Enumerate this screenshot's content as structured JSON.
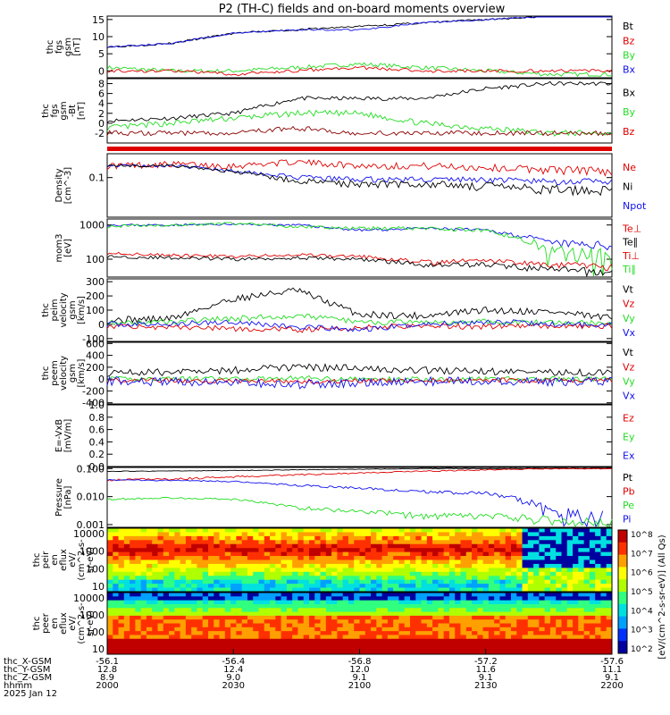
{
  "title": "P2 (TH-C) fields and on-board moments overview",
  "colors": {
    "black": "#000000",
    "red": "#e00000",
    "green": "#22dd22",
    "blue": "#1010ee",
    "darkred": "#8b0000"
  },
  "panels": [
    {
      "id": "fgs_gsm",
      "ylabel": [
        "thc",
        "fgs",
        "gsm",
        "[nT]"
      ],
      "yticks": [
        "15",
        "10",
        "5",
        "0"
      ],
      "yrange": [
        -2,
        16
      ],
      "legend": [
        {
          "text": "Bt",
          "color": "black"
        },
        {
          "text": "Bz",
          "color": "red"
        },
        {
          "text": "By",
          "color": "green"
        },
        {
          "text": "Bx",
          "color": "blue"
        }
      ]
    },
    {
      "id": "fgs_gsm_min",
      "ylabel": [
        "thc",
        "fgs",
        "gsm",
        "-Bt",
        "[nT]"
      ],
      "yticks": [
        "8",
        "6",
        "4",
        "2",
        "0",
        "-2"
      ],
      "yrange": [
        -4,
        9
      ],
      "legend": [
        {
          "text": "Bx",
          "color": "black"
        },
        {
          "text": "By",
          "color": "green"
        },
        {
          "text": "Bz",
          "color": "red"
        }
      ]
    },
    {
      "id": "density",
      "ylabel": [
        "Density",
        "[cm^-3]"
      ],
      "yticks": [
        "0.1"
      ],
      "yrange": [
        0.01,
        0.4
      ],
      "legend": [
        {
          "text": "Ne",
          "color": "red"
        },
        {
          "text": "Ni",
          "color": "black"
        },
        {
          "text": "Npot",
          "color": "blue"
        }
      ]
    },
    {
      "id": "temperature",
      "ylabel": [
        "mom3",
        "[eV]"
      ],
      "yticks": [
        "1000",
        "100"
      ],
      "yrange": [
        30,
        1500
      ],
      "legend": [
        {
          "text": "Te⊥",
          "color": "red"
        },
        {
          "text": "Te∥",
          "color": "black"
        },
        {
          "text": "Ti⊥",
          "color": "red"
        },
        {
          "text": "Ti∥",
          "color": "green"
        }
      ]
    },
    {
      "id": "vi",
      "ylabel": [
        "thc",
        "peim",
        "velocity",
        "gsm",
        "[km/s]"
      ],
      "yticks": [
        "300",
        "200",
        "100",
        "0",
        "-100"
      ],
      "yrange": [
        -120,
        320
      ],
      "legend": [
        {
          "text": "Vt",
          "color": "black"
        },
        {
          "text": "Vz",
          "color": "red"
        },
        {
          "text": "Vy",
          "color": "green"
        },
        {
          "text": "Vx",
          "color": "blue"
        }
      ]
    },
    {
      "id": "ve",
      "ylabel": [
        "thc",
        "peem",
        "velocity",
        "gsm",
        "[km/s]"
      ],
      "yticks": [
        "600",
        "400",
        "200",
        "0",
        "-200",
        "-400"
      ],
      "yrange": [
        -420,
        620
      ],
      "legend": [
        {
          "text": "Vt",
          "color": "black"
        },
        {
          "text": "Vz",
          "color": "red"
        },
        {
          "text": "Vy",
          "color": "green"
        },
        {
          "text": "Vx",
          "color": "blue"
        }
      ]
    },
    {
      "id": "efield",
      "ylabel": [
        "E=-VxB",
        "[mV/m]"
      ],
      "yticks": [
        "1.0",
        "0.8",
        "0.6",
        "0.4",
        "0.2",
        "0.0"
      ],
      "yrange": [
        0,
        1
      ],
      "legend": [
        {
          "text": "Ez",
          "color": "red"
        },
        {
          "text": "Ey",
          "color": "green"
        },
        {
          "text": "Ex",
          "color": "blue"
        }
      ]
    },
    {
      "id": "pressure",
      "ylabel": [
        "Pressure",
        "[nPa]"
      ],
      "yticks": [
        "0.100",
        "0.010",
        "0.001"
      ],
      "yrange": [
        0.0008,
        0.11
      ],
      "legend": [
        {
          "text": "Pt",
          "color": "black"
        },
        {
          "text": "Pb",
          "color": "red"
        },
        {
          "text": "Pe",
          "color": "green"
        },
        {
          "text": "Pi",
          "color": "blue"
        }
      ]
    },
    {
      "id": "ion_spec",
      "ylabel": [
        "thc",
        "peir",
        "en",
        "eflux",
        "eV/",
        "(cm^2-s-",
        "sr-eV)"
      ],
      "yticks": [
        "10000",
        "1000",
        "100",
        "10"
      ],
      "yrange": [
        5,
        20000
      ]
    },
    {
      "id": "el_spec",
      "ylabel": [
        "thc",
        "peer",
        "en",
        "eflux",
        "eV/",
        "(cm^2-s-",
        "sr-eV)"
      ],
      "yticks": [
        "10000",
        "1000",
        "100",
        "10"
      ],
      "yrange": [
        5,
        20000
      ]
    }
  ],
  "colorbar": {
    "labels": [
      "10^8",
      "10^7",
      "10^6",
      "10^5",
      "10^4",
      "10^3",
      "10^2"
    ],
    "title": "[eV/(cm^2-s-sr-eV)]",
    "title2": "[eV/(cm^2-s-sr-eV)] (All Qs)",
    "range": [
      2,
      8
    ]
  },
  "xaxis": {
    "row_labels": [
      "thc_X-GSM",
      "thc_Y-GSM",
      "thc_Z-GSM",
      "hhmm",
      "2025 Jan 12"
    ],
    "ticks": [
      {
        "x": "-56.1",
        "y": "12.8",
        "z": "8.9",
        "t": "2000"
      },
      {
        "x": "-56.4",
        "y": "12.4",
        "z": "9.0",
        "t": "2030"
      },
      {
        "x": "-56.8",
        "y": "12.0",
        "z": "9.1",
        "t": "2100"
      },
      {
        "x": "-57.2",
        "y": "11.6",
        "z": "9.1",
        "t": "2130"
      },
      {
        "x": "-57.6",
        "y": "11.1",
        "z": "9.1",
        "t": "2200"
      }
    ]
  },
  "chart_data": {
    "type": "line",
    "title": "P2 (TH-C) fields and on-board moments overview",
    "x": [
      "2000",
      "2030",
      "2100",
      "2130",
      "2200"
    ],
    "xlabel": "hhmm",
    "series": [
      {
        "panel": "fgs_gsm",
        "name": "Bt",
        "values": [
          7,
          10,
          12,
          14,
          16
        ]
      },
      {
        "panel": "fgs_gsm",
        "name": "Bz",
        "values": [
          0,
          0,
          1,
          0,
          0
        ]
      },
      {
        "panel": "fgs_gsm",
        "name": "By",
        "values": [
          1,
          -1,
          1,
          0,
          -1
        ]
      },
      {
        "panel": "fgs_gsm",
        "name": "Bx",
        "values": [
          7,
          10,
          12,
          14,
          16
        ]
      },
      {
        "panel": "fgs_gsm_min",
        "name": "Bx",
        "values": [
          1,
          2,
          5,
          7,
          8
        ]
      },
      {
        "panel": "fgs_gsm_min",
        "name": "By",
        "values": [
          -1,
          1,
          2,
          -1,
          -2
        ]
      },
      {
        "panel": "fgs_gsm_min",
        "name": "Bz",
        "values": [
          -2,
          -2,
          -2,
          -2,
          -2
        ]
      },
      {
        "panel": "density",
        "name": "Ne",
        "values": [
          0.2,
          0.25,
          0.2,
          0.18,
          0.15
        ]
      },
      {
        "panel": "density",
        "name": "Ni",
        "values": [
          0.2,
          0.15,
          0.08,
          0.07,
          0.05
        ]
      },
      {
        "panel": "density",
        "name": "Npot",
        "values": [
          0.2,
          0.2,
          0.1,
          0.09,
          0.08
        ]
      },
      {
        "panel": "temperature",
        "name": "Te∥",
        "values": [
          120,
          100,
          110,
          60,
          40
        ]
      },
      {
        "panel": "temperature",
        "name": "Ti∥",
        "values": [
          1000,
          1100,
          1000,
          600,
          120
        ]
      },
      {
        "panel": "vi",
        "name": "Vt",
        "values": [
          30,
          180,
          70,
          90,
          40
        ]
      },
      {
        "panel": "ve",
        "name": "Vt",
        "values": [
          100,
          150,
          150,
          120,
          100
        ]
      },
      {
        "panel": "pressure",
        "name": "Pt",
        "values": [
          0.08,
          0.085,
          0.09,
          0.1,
          0.1
        ]
      },
      {
        "panel": "pressure",
        "name": "Pb",
        "values": [
          0.04,
          0.05,
          0.07,
          0.1,
          0.1
        ]
      },
      {
        "panel": "pressure",
        "name": "Pe",
        "values": [
          0.008,
          0.007,
          0.003,
          0.002,
          0.001
        ]
      },
      {
        "panel": "pressure",
        "name": "Pi",
        "values": [
          0.04,
          0.035,
          0.02,
          0.015,
          0.002
        ]
      }
    ]
  }
}
